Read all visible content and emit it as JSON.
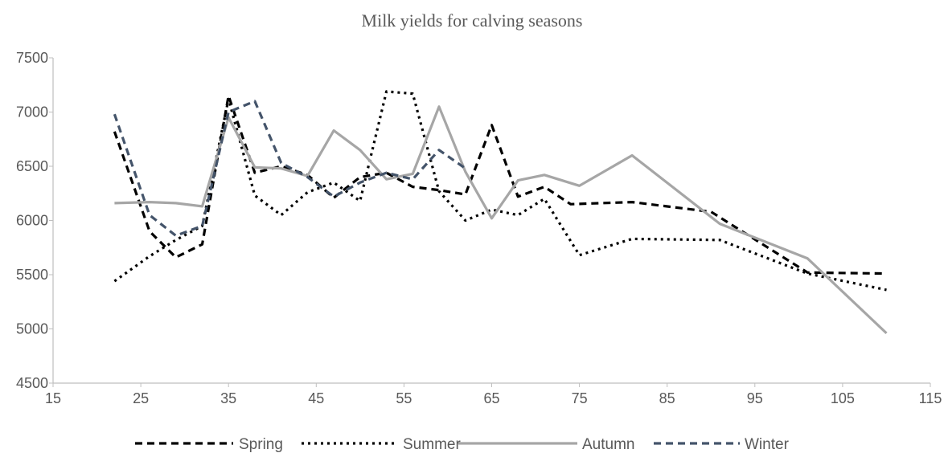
{
  "chart_data": {
    "type": "line",
    "title": "Milk yields for calving seasons",
    "xlabel": "",
    "ylabel": "",
    "xlim": [
      15,
      115
    ],
    "ylim": [
      4500,
      7500
    ],
    "xticks": [
      15,
      25,
      35,
      45,
      55,
      65,
      75,
      85,
      95,
      105,
      115
    ],
    "yticks": [
      4500,
      5000,
      5500,
      6000,
      6500,
      7000,
      7500
    ],
    "grid": false,
    "legend_position": "bottom",
    "series": [
      {
        "name": "Spring",
        "color": "#000000",
        "dash": "dash",
        "x": [
          22,
          26,
          29,
          32,
          35,
          38,
          41,
          44,
          47,
          50,
          53,
          56,
          59,
          62,
          65,
          68,
          71,
          74,
          81,
          90,
          101,
          110
        ],
        "y": [
          6820,
          5900,
          5660,
          5780,
          7150,
          6440,
          6500,
          6420,
          6210,
          6400,
          6440,
          6310,
          6280,
          6240,
          6880,
          6220,
          6310,
          6150,
          6170,
          6080,
          5520,
          5510
        ]
      },
      {
        "name": "Summer",
        "color": "#000000",
        "dash": "dot",
        "x": [
          22,
          26,
          29,
          32,
          35,
          38,
          41,
          44,
          47,
          50,
          53,
          56,
          59,
          62,
          65,
          68,
          71,
          75,
          81,
          91,
          101,
          110
        ],
        "y": [
          5440,
          5670,
          5820,
          5950,
          7120,
          6230,
          6050,
          6260,
          6350,
          6180,
          7190,
          7170,
          6270,
          6000,
          6100,
          6050,
          6200,
          5680,
          5830,
          5820,
          5510,
          5360
        ]
      },
      {
        "name": "Autumn",
        "color": "#a6a6a6",
        "dash": "solid",
        "x": [
          22,
          26,
          29,
          32,
          35,
          38,
          41,
          44,
          47,
          50,
          53,
          56,
          59,
          62,
          65,
          68,
          71,
          75,
          81,
          91,
          101,
          110
        ],
        "y": [
          6160,
          6170,
          6160,
          6130,
          6950,
          6490,
          6480,
          6410,
          6830,
          6650,
          6380,
          6430,
          7050,
          6450,
          6020,
          6370,
          6420,
          6320,
          6600,
          5970,
          5650,
          4960
        ]
      },
      {
        "name": "Winter",
        "color": "#44546a",
        "dash": "dash",
        "x": [
          22,
          26,
          29,
          32,
          35,
          38,
          41,
          44,
          47,
          50,
          53,
          56,
          59,
          62
        ],
        "y": [
          6980,
          6050,
          5860,
          5950,
          7000,
          7100,
          6530,
          6400,
          6220,
          6350,
          6440,
          6380,
          6650,
          6480
        ]
      }
    ]
  }
}
